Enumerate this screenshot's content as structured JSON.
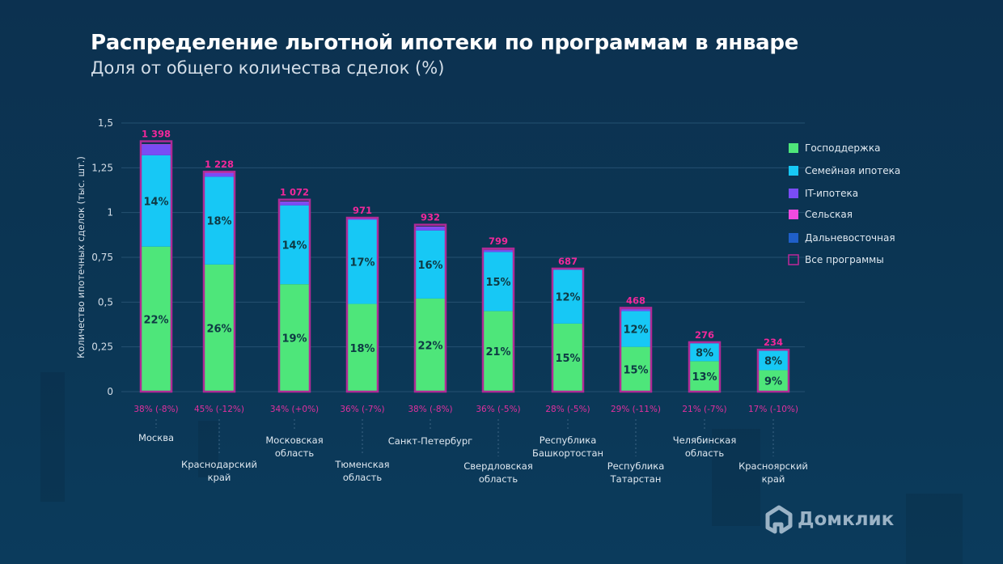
{
  "header": {
    "title": "Распределение льготной ипотеки по программам в январе",
    "subtitle": "Доля от общего количества сделок (%)"
  },
  "logo": {
    "text": "Домклик",
    "icon": "house-logo-icon"
  },
  "chart_data": {
    "type": "bar",
    "stacked": true,
    "title": "Распределение льготной ипотеки по программам в январе",
    "subtitle": "Доля от общего количества сделок (%)",
    "xlabel": "",
    "ylabel": "Количество ипотечных сделок (тыс. шт.)",
    "ylim": [
      0,
      1.5
    ],
    "yticks": [
      0,
      0.25,
      0.5,
      0.75,
      1,
      1.25,
      1.5
    ],
    "ytick_labels": [
      "0",
      "0,25",
      "0,5",
      "0,75",
      "1",
      "1,25",
      "1,5"
    ],
    "grid": true,
    "legend_position": "right",
    "categories": [
      [
        "Москва"
      ],
      [
        "Краснодарский",
        "край"
      ],
      [
        "Московская",
        "область"
      ],
      [
        "Тюменская",
        "область"
      ],
      [
        "Санкт-Петербург"
      ],
      [
        "Свердловская",
        "область"
      ],
      [
        "Республика",
        "Башкортостан"
      ],
      [
        "Республика",
        "Татарстан"
      ],
      [
        "Челябинская",
        "область"
      ],
      [
        "Красноярский",
        "край"
      ]
    ],
    "series": [
      {
        "name": "Господдержка",
        "color": "#4ee67a",
        "values": [
          0.81,
          0.71,
          0.6,
          0.49,
          0.52,
          0.45,
          0.38,
          0.25,
          0.17,
          0.12
        ],
        "labels": [
          "22%",
          "26%",
          "19%",
          "18%",
          "22%",
          "21%",
          "15%",
          "15%",
          "13%",
          "9%"
        ]
      },
      {
        "name": "Семейная ипотека",
        "color": "#17c8f5",
        "values": [
          0.51,
          0.49,
          0.44,
          0.47,
          0.38,
          0.33,
          0.3,
          0.2,
          0.1,
          0.11
        ],
        "labels": [
          "14%",
          "18%",
          "14%",
          "17%",
          "16%",
          "15%",
          "12%",
          "12%",
          "8%",
          "8%"
        ]
      },
      {
        "name": "IT-ипотека",
        "color": "#7a4cf5",
        "values": [
          0.06,
          0.02,
          0.02,
          0.005,
          0.02,
          0.01,
          0.002,
          0.01,
          0.002,
          0.002
        ],
        "labels": []
      },
      {
        "name": "Сельская",
        "color": "#f04be0",
        "values": [
          0.002,
          0.002,
          0.002,
          0.002,
          0.002,
          0.002,
          0.002,
          0.002,
          0.002,
          0.002
        ],
        "labels": []
      },
      {
        "name": "Дальневосточная",
        "color": "#1f5fc8",
        "values": [
          0,
          0,
          0,
          0,
          0,
          0,
          0,
          0,
          0,
          0
        ],
        "labels": []
      }
    ],
    "totals": {
      "name": "Все программы",
      "color": "#c0289a",
      "values": [
        1.398,
        1.228,
        1.072,
        0.971,
        0.932,
        0.799,
        0.687,
        0.468,
        0.276,
        0.234
      ],
      "labels": [
        "1 398",
        "1 228",
        "1 072",
        "971",
        "932",
        "799",
        "687",
        "468",
        "276",
        "234"
      ]
    },
    "share_labels": [
      "38% (-8%)",
      "45% (-12%)",
      "34% (+0%)",
      "36% (-7%)",
      "38% (-8%)",
      "36% (-5%)",
      "28% (-5%)",
      "29% (-11%)",
      "21% (-7%)",
      "17% (-10%)"
    ],
    "colors": {
      "total_label": "#f0289a",
      "share_label": "#e0309e",
      "bar_outline": "#b02a96",
      "segment_label": "#0e3a44"
    }
  }
}
